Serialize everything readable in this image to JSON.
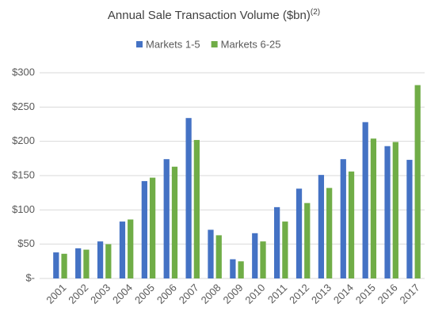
{
  "chart_data": {
    "type": "bar",
    "title": "Annual Sale Transaction Volume ($bn)",
    "title_note": "(2)",
    "categories": [
      "2001",
      "2002",
      "2003",
      "2004",
      "2005",
      "2006",
      "2007",
      "2008",
      "2009",
      "2010",
      "2011",
      "2012",
      "2013",
      "2014",
      "2015",
      "2016",
      "2017"
    ],
    "series": [
      {
        "name": "Markets 1-5",
        "color": "#4472c4",
        "values": [
          38,
          44,
          54,
          83,
          142,
          174,
          234,
          71,
          28,
          66,
          104,
          131,
          151,
          174,
          228,
          193,
          173
        ]
      },
      {
        "name": "Markets 6-25",
        "color": "#70ad47",
        "values": [
          36,
          42,
          50,
          86,
          147,
          163,
          202,
          63,
          25,
          54,
          83,
          110,
          132,
          156,
          204,
          199,
          282
        ]
      }
    ],
    "ylim": [
      0,
      300
    ],
    "yticks": [
      {
        "value": 0,
        "label": "$-"
      },
      {
        "value": 50,
        "label": "$50"
      },
      {
        "value": 100,
        "label": "$100"
      },
      {
        "value": 150,
        "label": "$150"
      },
      {
        "value": 200,
        "label": "$200"
      },
      {
        "value": 250,
        "label": "$250"
      },
      {
        "value": 300,
        "label": "$300"
      }
    ],
    "grid": true,
    "legend": "top"
  }
}
